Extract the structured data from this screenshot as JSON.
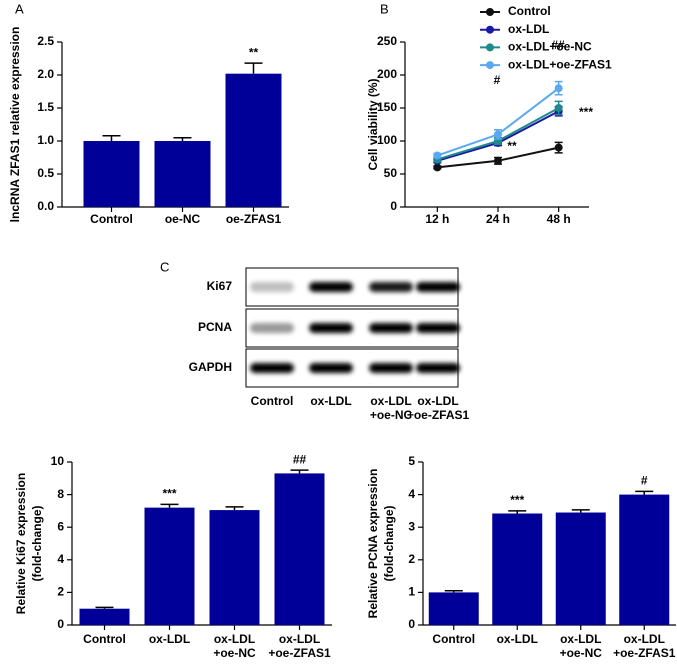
{
  "chart_data": [
    {
      "panel": "A",
      "type": "bar",
      "ylabel": "lncRNA ZFAS1 relative expression",
      "categories": [
        "Control",
        "oe-NC",
        "oe-ZFAS1"
      ],
      "values": [
        1.0,
        1.0,
        2.02
      ],
      "errors": [
        0.08,
        0.05,
        0.16
      ],
      "color": "#000099",
      "ylim": [
        0,
        2.5
      ],
      "yticks": [
        {
          "value": 0,
          "label": "0.0"
        },
        {
          "value": 0.5,
          "label": "0.5"
        },
        {
          "value": 1,
          "label": "1.0"
        },
        {
          "value": 1.5,
          "label": "1.5"
        },
        {
          "value": 2,
          "label": "2.0"
        },
        {
          "value": 2.5,
          "label": "2.5"
        }
      ],
      "annotations": [
        "**"
      ]
    },
    {
      "panel": "B",
      "type": "line",
      "ylabel": "Cell viability (%)",
      "categories": [
        "12 h",
        "24 h",
        "48 h"
      ],
      "series": [
        {
          "name": "Control",
          "color": "#111111",
          "values": [
            60,
            70,
            90
          ],
          "errors": [
            2,
            5,
            8
          ]
        },
        {
          "name": "ox-LDL",
          "color": "#1a1aa6",
          "values": [
            70,
            97,
            145
          ],
          "errors": [
            3,
            4,
            7
          ]
        },
        {
          "name": "ox-LDL+oe-NC",
          "color": "#1f8a8a",
          "values": [
            72,
            100,
            150
          ],
          "errors": [
            3,
            5,
            10
          ]
        },
        {
          "name": "ox-LDL+oe-ZFAS1",
          "color": "#5aa9f0",
          "values": [
            78,
            110,
            180
          ],
          "errors": [
            3,
            7,
            10
          ]
        }
      ],
      "ylim": [
        0,
        250
      ],
      "yticks": [
        0,
        50,
        100,
        150,
        200,
        250
      ],
      "annotations": [
        "**",
        "***",
        "#",
        "##"
      ]
    },
    {
      "type": "bar",
      "ylabel": [
        "Relative Ki67 expression",
        "(fold-change)"
      ],
      "categories": [
        "Control",
        "ox-LDL",
        "ox-LDL\n+oe-NC",
        "ox-LDL\n+oe-ZFAS1"
      ],
      "values": [
        1.0,
        7.2,
        7.05,
        9.3
      ],
      "errors": [
        0.08,
        0.2,
        0.2,
        0.2
      ],
      "color": "#000099",
      "ylim": [
        0,
        10
      ],
      "yticks": [
        0,
        2,
        4,
        6,
        8,
        10
      ],
      "annotations": [
        "***",
        "##"
      ]
    },
    {
      "type": "bar",
      "ylabel": [
        "Relative PCNA expression",
        "(fold-change)"
      ],
      "categories": [
        "Control",
        "ox-LDL",
        "ox-LDL\n+oe-NC",
        "ox-LDL\n+oe-ZFAS1"
      ],
      "values": [
        1.0,
        3.42,
        3.45,
        4.0
      ],
      "errors": [
        0.05,
        0.08,
        0.08,
        0.1
      ],
      "color": "#000099",
      "ylim": [
        0,
        5
      ],
      "yticks": [
        0,
        1,
        2,
        3,
        4,
        5
      ],
      "annotations": [
        "***",
        "#"
      ]
    }
  ],
  "blot": {
    "panel": "C",
    "rows": [
      "Ki67",
      "PCNA",
      "GAPDH"
    ],
    "lanes": [
      "Control",
      "ox-LDL",
      "ox-LDL\n+oe-NC",
      "ox-LDL\n+oe-ZFAS1"
    ]
  }
}
